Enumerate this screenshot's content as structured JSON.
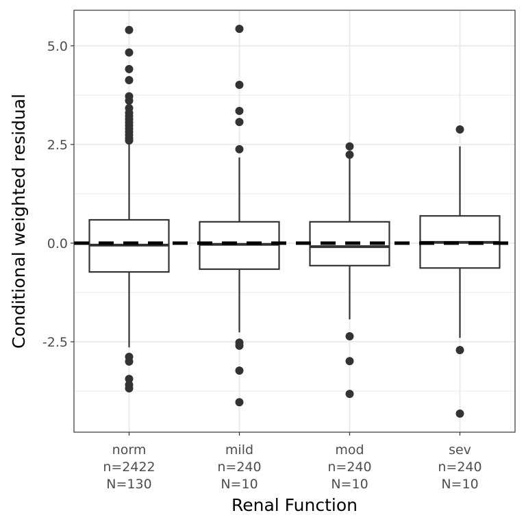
{
  "chart_data": {
    "type": "box",
    "title": "",
    "xlabel": "Renal Function",
    "ylabel": "Conditional weighted residual",
    "ylim": [
      -4.79,
      5.9
    ],
    "yticks": [
      5.0,
      2.5,
      0.0,
      -2.5
    ],
    "ytick_labels": [
      "5.0",
      "2.5",
      "0.0",
      "-2.5"
    ],
    "reference_line": 0,
    "grid": true,
    "categories": [
      {
        "label": [
          "norm",
          "n=2422",
          "N=130"
        ],
        "q1": -0.73,
        "median": -0.05,
        "q3": 0.59,
        "whisker_low": -2.64,
        "whisker_high": 2.52,
        "outliers": [
          5.4,
          4.83,
          4.41,
          4.13,
          3.72,
          3.61,
          3.42,
          3.3,
          3.22,
          3.14,
          3.06,
          2.98,
          2.9,
          2.82,
          2.74,
          2.66,
          2.6,
          -2.88,
          -3.0,
          -3.44,
          -3.59,
          -3.68
        ]
      },
      {
        "label": [
          "mild",
          "n=240",
          "N=10"
        ],
        "q1": -0.66,
        "median": -0.03,
        "q3": 0.54,
        "whisker_low": -2.26,
        "whisker_high": 2.17,
        "outliers": [
          5.43,
          4.01,
          3.35,
          3.07,
          2.38,
          -2.52,
          -2.6,
          -3.23,
          -4.03
        ]
      },
      {
        "label": [
          "mod",
          "n=240",
          "N=10"
        ],
        "q1": -0.57,
        "median": -0.09,
        "q3": 0.54,
        "whisker_low": -1.93,
        "whisker_high": 2.2,
        "outliers": [
          2.45,
          2.24,
          -2.36,
          -2.99,
          -3.82
        ]
      },
      {
        "label": [
          "sev",
          "n=240",
          "N=10"
        ],
        "q1": -0.63,
        "median": 0.02,
        "q3": 0.69,
        "whisker_low": -2.4,
        "whisker_high": 2.45,
        "outliers": [
          2.88,
          -2.71,
          -4.32
        ]
      }
    ]
  }
}
